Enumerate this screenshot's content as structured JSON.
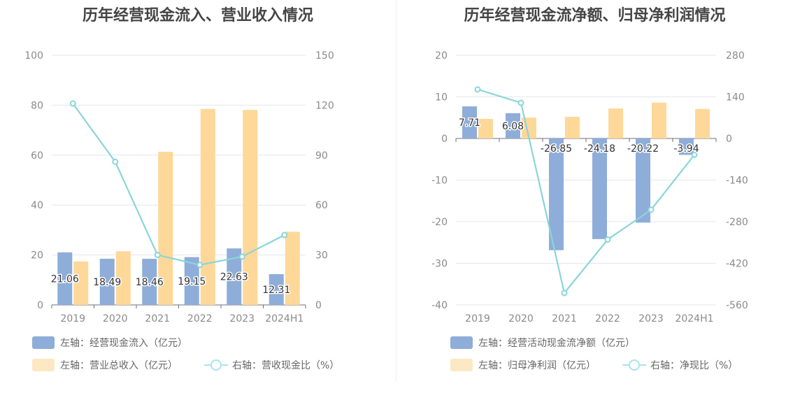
{
  "colors": {
    "cash": "#8eadd9",
    "revenue": "#fed898",
    "ratio": "#8ad5d9",
    "grid": "#e4e6ee",
    "axis": "#6e7079",
    "legend_revenue": "#fde8c4",
    "legend_ratio": "#a8e4ec"
  },
  "chart_data": [
    {
      "type": "bar",
      "title": "历年经营现金流入、营业收入情况",
      "categories": [
        "2019",
        "2020",
        "2021",
        "2022",
        "2023",
        "2024H1"
      ],
      "ylim_left": [
        0,
        100
      ],
      "ylim_right": [
        0,
        150
      ],
      "left_ticks": [
        "0",
        "20",
        "40",
        "60",
        "80",
        "100"
      ],
      "right_ticks": [
        "0",
        "30",
        "60",
        "90",
        "120",
        "150"
      ],
      "grid": true,
      "series": [
        {
          "name": "左轴：经营现金流入（亿元）",
          "axis": "left",
          "type": "bar",
          "values": [
            21.06,
            18.49,
            18.46,
            19.15,
            22.63,
            12.31
          ],
          "labels": [
            "21.06",
            "18.49",
            "18.46",
            "19.15",
            "22.63",
            "12.31"
          ]
        },
        {
          "name": "左轴：营业总收入（亿元）",
          "axis": "left",
          "type": "bar",
          "values": [
            17.4,
            21.5,
            61.3,
            78.5,
            78.1,
            29.3
          ]
        },
        {
          "name": "右轴：营收现金比（%）",
          "axis": "right",
          "type": "line",
          "values": [
            121,
            86,
            30,
            24,
            29,
            42
          ]
        }
      ]
    },
    {
      "type": "bar",
      "title": "历年经营现金流净额、归母净利润情况",
      "categories": [
        "2019",
        "2020",
        "2021",
        "2022",
        "2023",
        "2024H1"
      ],
      "ylim_left": [
        -40,
        20
      ],
      "ylim_right": [
        -560,
        280
      ],
      "left_ticks": [
        "-40",
        "-30",
        "-20",
        "-10",
        "0",
        "10",
        "20"
      ],
      "right_ticks": [
        "-560",
        "-420",
        "-280",
        "-140",
        "0",
        "140",
        "280"
      ],
      "grid": true,
      "series": [
        {
          "name": "左轴：经营活动现金流净额（亿元）",
          "axis": "left",
          "type": "bar",
          "values": [
            7.71,
            6.08,
            -26.85,
            -24.18,
            -20.22,
            -3.94
          ],
          "labels": [
            "7.71",
            "6.08",
            "-26.85",
            "-24.18",
            "-20.22",
            "-3.94"
          ]
        },
        {
          "name": "左轴：归母净利润（亿元）",
          "axis": "left",
          "type": "bar",
          "values": [
            4.7,
            5.0,
            5.2,
            7.2,
            8.6,
            7.1
          ]
        },
        {
          "name": "右轴：净现比（%）",
          "axis": "right",
          "type": "line",
          "values": [
            165,
            120,
            -520,
            -340,
            -240,
            -55
          ]
        }
      ]
    }
  ],
  "legends": {
    "left": {
      "cash": "左轴：经营现金流入（亿元）",
      "revenue": "左轴：营业总收入（亿元）",
      "ratio": "右轴：营收现金比（%）"
    },
    "right": {
      "cash": "左轴：经营活动现金流净额（亿元）",
      "revenue": "左轴：归母净利润（亿元）",
      "ratio": "右轴：净现比（%）"
    }
  }
}
